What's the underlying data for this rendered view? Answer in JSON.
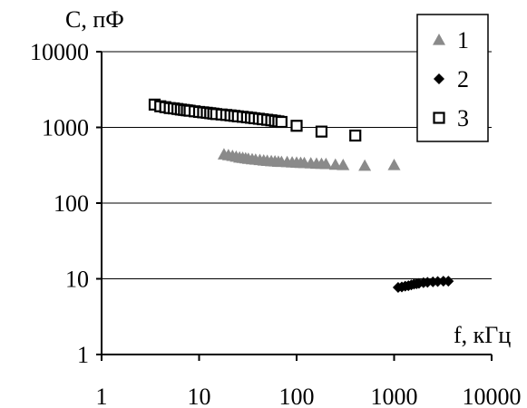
{
  "chart_data": {
    "type": "scatter",
    "x_scale": "log",
    "y_scale": "log",
    "xlim": [
      1,
      10000
    ],
    "ylim": [
      1,
      10000
    ],
    "x_ticks": [
      "1",
      "10",
      "100",
      "1000",
      "10000"
    ],
    "y_ticks": [
      "1",
      "10",
      "100",
      "1000",
      "10000"
    ],
    "ylabel": "C, пФ",
    "xlabel": "f, кГц",
    "grid": "horizontal",
    "legend_position": "top-right",
    "series": [
      {
        "name": "1",
        "marker": "triangle",
        "color": "#8a8a8a",
        "points": [
          [
            18,
            440
          ],
          [
            20,
            430
          ],
          [
            22,
            420
          ],
          [
            24,
            410
          ],
          [
            26,
            400
          ],
          [
            28,
            395
          ],
          [
            30,
            390
          ],
          [
            32,
            385
          ],
          [
            35,
            380
          ],
          [
            38,
            375
          ],
          [
            42,
            370
          ],
          [
            46,
            365
          ],
          [
            50,
            362
          ],
          [
            55,
            358
          ],
          [
            60,
            355
          ],
          [
            65,
            352
          ],
          [
            70,
            350
          ],
          [
            80,
            348
          ],
          [
            90,
            345
          ],
          [
            100,
            342
          ],
          [
            110,
            340
          ],
          [
            120,
            338
          ],
          [
            140,
            335
          ],
          [
            160,
            332
          ],
          [
            180,
            330
          ],
          [
            200,
            328
          ],
          [
            250,
            322
          ],
          [
            300,
            318
          ],
          [
            500,
            312
          ],
          [
            1000,
            318
          ]
        ]
      },
      {
        "name": "2",
        "marker": "diamond",
        "color": "#000000",
        "points": [
          [
            1100,
            7.7
          ],
          [
            1200,
            7.8
          ],
          [
            1300,
            8.0
          ],
          [
            1400,
            8.1
          ],
          [
            1500,
            8.3
          ],
          [
            1600,
            8.5
          ],
          [
            1700,
            8.6
          ],
          [
            1800,
            8.7
          ],
          [
            2000,
            8.9
          ],
          [
            2200,
            9.0
          ],
          [
            2500,
            9.1
          ],
          [
            2800,
            9.2
          ],
          [
            3200,
            9.3
          ],
          [
            3600,
            9.3
          ]
        ]
      },
      {
        "name": "3",
        "marker": "square-open",
        "color": "#000000",
        "points": [
          [
            3.5,
            2000
          ],
          [
            4,
            1900
          ],
          [
            4.5,
            1850
          ],
          [
            5,
            1800
          ],
          [
            5.5,
            1780
          ],
          [
            6,
            1750
          ],
          [
            6.5,
            1720
          ],
          [
            7,
            1700
          ],
          [
            7.5,
            1680
          ],
          [
            8,
            1660
          ],
          [
            9,
            1630
          ],
          [
            10,
            1600
          ],
          [
            11,
            1580
          ],
          [
            12,
            1560
          ],
          [
            13,
            1540
          ],
          [
            14,
            1520
          ],
          [
            15,
            1500
          ],
          [
            17,
            1480
          ],
          [
            19,
            1460
          ],
          [
            21,
            1440
          ],
          [
            23,
            1420
          ],
          [
            25,
            1400
          ],
          [
            28,
            1380
          ],
          [
            31,
            1360
          ],
          [
            34,
            1340
          ],
          [
            37,
            1320
          ],
          [
            41,
            1300
          ],
          [
            45,
            1280
          ],
          [
            50,
            1260
          ],
          [
            55,
            1240
          ],
          [
            60,
            1220
          ],
          [
            65,
            1200
          ],
          [
            70,
            1180
          ],
          [
            100,
            1050
          ],
          [
            180,
            880
          ],
          [
            400,
            780
          ]
        ]
      }
    ]
  }
}
